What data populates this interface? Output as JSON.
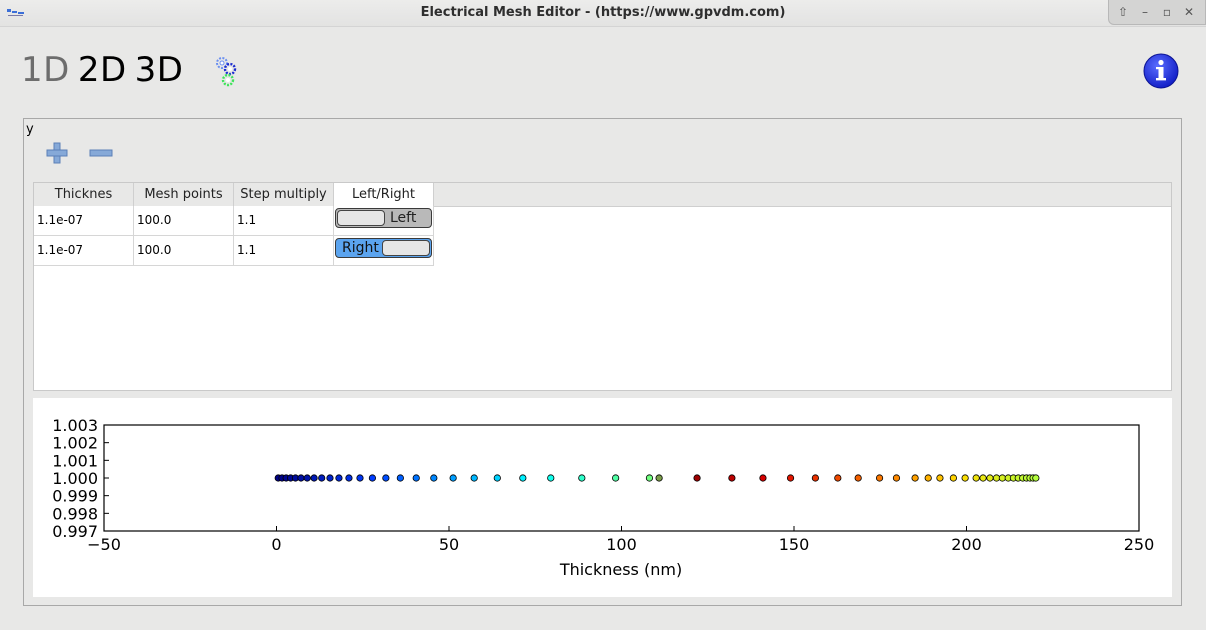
{
  "window": {
    "title": "Electrical Mesh Editor - (https://www.gpvdm.com)",
    "controls": {
      "up": "⇧",
      "minimize": "–",
      "maximize": "▫",
      "close": "✕"
    }
  },
  "dimensions": {
    "d1": "1D",
    "d2": "2D",
    "d3": "3D"
  },
  "group": {
    "label": "y"
  },
  "table": {
    "headers": [
      "Thicknes",
      "Mesh points",
      "Step multiply",
      "Left/Right"
    ],
    "rows": [
      {
        "thickness": "1.1e-07",
        "mesh_points": "100.0",
        "step_multiply": "1.1",
        "side": "Left",
        "side_state": "off"
      },
      {
        "thickness": "1.1e-07",
        "mesh_points": "100.0",
        "step_multiply": "1.1",
        "side": "Right",
        "side_state": "on"
      }
    ]
  },
  "colors": {
    "accent": "#5ba4ef",
    "info": "#1a2be0"
  },
  "chart_data": {
    "type": "scatter",
    "xlabel": "Thickness (nm)",
    "ylabel": "",
    "xlim": [
      -50,
      250
    ],
    "ylim": [
      0.997,
      1.003
    ],
    "x_ticks": [
      "−50",
      "0",
      "50",
      "100",
      "150",
      "200",
      "250"
    ],
    "y_ticks": [
      "1.003",
      "1.002",
      "1.001",
      "1.000",
      "0.999",
      "0.998",
      "0.997"
    ],
    "y_value": 1.0,
    "x": [
      0.5,
      1.6,
      2.8,
      4.1,
      5.5,
      7.1,
      8.9,
      10.9,
      13.1,
      15.5,
      18.1,
      21.0,
      24.2,
      27.8,
      31.7,
      35.9,
      40.5,
      45.6,
      51.2,
      57.3,
      64.0,
      71.4,
      79.5,
      88.5,
      98.3,
      108.1,
      110.9,
      121.9,
      132.0,
      141.0,
      149.0,
      156.2,
      162.7,
      168.6,
      174.8,
      179.7,
      185.1,
      188.9,
      192.3,
      196.2,
      199.6,
      202.8,
      204.8,
      206.8,
      208.7,
      210.4,
      212.1,
      213.6,
      215.0,
      216.3,
      217.4,
      218.4,
      219.3,
      220.1
    ],
    "grid": false
  }
}
